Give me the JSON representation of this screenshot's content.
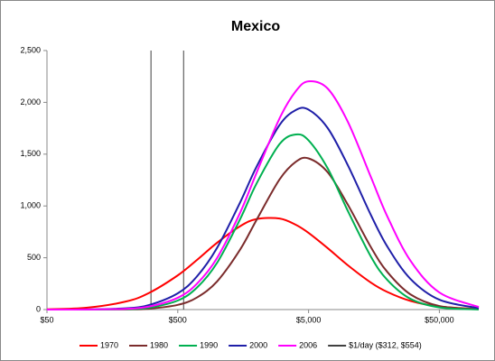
{
  "chart_data": {
    "type": "line",
    "title": "Mexico",
    "log_x": true,
    "x": [
      50,
      100,
      200,
      300,
      500,
      700,
      1000,
      1500,
      2000,
      3000,
      4000,
      5000,
      7000,
      10000,
      15000,
      20000,
      30000,
      50000,
      100000
    ],
    "series": [
      {
        "name": "1970",
        "color": "#ff0000",
        "values": [
          2.5,
          17,
          77,
          159,
          330,
          478,
          645,
          805,
          873,
          879,
          818,
          740,
          593,
          427,
          260,
          170,
          84,
          29,
          5
        ]
      },
      {
        "name": "1980",
        "color": "#7b2c2c",
        "values": [
          0,
          0,
          1.5,
          8,
          45,
          116,
          272,
          580,
          865,
          1256,
          1427,
          1459,
          1325,
          1010,
          601,
          363,
          147,
          34,
          3
        ]
      },
      {
        "name": "1990",
        "color": "#00b050",
        "values": [
          0,
          0,
          4,
          17,
          87,
          211,
          452,
          874,
          1216,
          1597,
          1690,
          1633,
          1363,
          950,
          510,
          286,
          104,
          21,
          1
        ]
      },
      {
        "name": "2000",
        "color": "#1f1fa8",
        "values": [
          0,
          1,
          12,
          43,
          157,
          319,
          597,
          1035,
          1378,
          1781,
          1926,
          1929,
          1752,
          1391,
          911,
          608,
          297,
          95,
          13
        ]
      },
      {
        "name": "2006",
        "color": "#ff00ff",
        "values": [
          0,
          1,
          7,
          28,
          114,
          249,
          499,
          936,
          1319,
          1845,
          2109,
          2203,
          2133,
          1810,
          1277,
          899,
          473,
          165,
          25
        ]
      }
    ],
    "reference_lines": {
      "name": "$1/day ($312, $554)",
      "color": "#404040",
      "x": [
        312,
        554
      ]
    },
    "xlim": [
      50,
      100000
    ],
    "xticks": [
      {
        "value": 50,
        "label": "$50"
      },
      {
        "value": 500,
        "label": "$500"
      },
      {
        "value": 5000,
        "label": "$5,000"
      },
      {
        "value": 50000,
        "label": "$50,000"
      }
    ],
    "ylim": [
      0,
      2500
    ],
    "yticks": [
      0,
      500,
      {
        "value": 1000,
        "label": "1,000"
      },
      {
        "value": 1500,
        "label": "1,500"
      },
      {
        "value": 2000,
        "label": "2,000"
      },
      {
        "value": 2500,
        "label": "2,500"
      }
    ],
    "legend": "bottom"
  }
}
